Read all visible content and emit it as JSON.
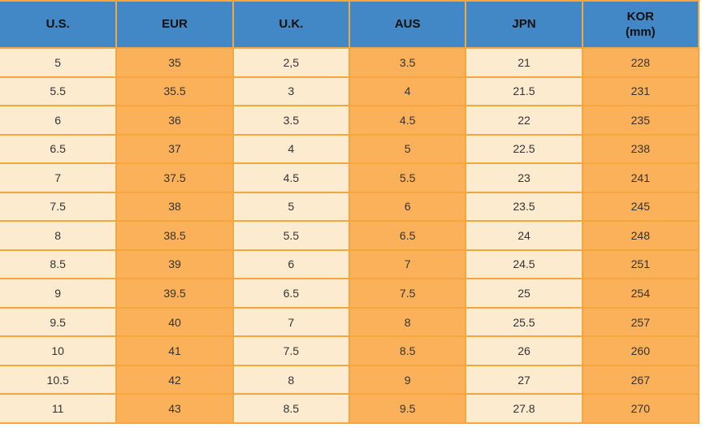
{
  "chart_data": {
    "type": "table",
    "columns": [
      {
        "label": "U.S."
      },
      {
        "label": "EUR"
      },
      {
        "label": "U.K."
      },
      {
        "label": "AUS"
      },
      {
        "label": "JPN"
      },
      {
        "label": "KOR",
        "sub": "(mm)"
      }
    ],
    "rows": [
      [
        "5",
        "35",
        "2,5",
        "3.5",
        "21",
        "228"
      ],
      [
        "5.5",
        "35.5",
        "3",
        "4",
        "21.5",
        "231"
      ],
      [
        "6",
        "36",
        "3.5",
        "4.5",
        "22",
        "235"
      ],
      [
        "6.5",
        "37",
        "4",
        "5",
        "22.5",
        "238"
      ],
      [
        "7",
        "37.5",
        "4.5",
        "5.5",
        "23",
        "241"
      ],
      [
        "7.5",
        "38",
        "5",
        "6",
        "23.5",
        "245"
      ],
      [
        "8",
        "38.5",
        "5.5",
        "6.5",
        "24",
        "248"
      ],
      [
        "8.5",
        "39",
        "6",
        "7",
        "24.5",
        "251"
      ],
      [
        "9",
        "39.5",
        "6.5",
        "7.5",
        "25",
        "254"
      ],
      [
        "9.5",
        "40",
        "7",
        "8",
        "25.5",
        "257"
      ],
      [
        "10",
        "41",
        "7.5",
        "8.5",
        "26",
        "260"
      ],
      [
        "10.5",
        "42",
        "8",
        "9",
        "27",
        "267"
      ],
      [
        "11",
        "43",
        "8.5",
        "9.5",
        "27.8",
        "270"
      ]
    ],
    "layout": {
      "header_row": true,
      "grid": true,
      "column_fill_pattern": [
        "cream",
        "orange",
        "cream",
        "orange",
        "cream",
        "orange"
      ]
    }
  },
  "colors": {
    "page_bg": "#FFFFFF",
    "header_bg": "#4288C6",
    "header_text": "#111111",
    "cell_text": "#333333",
    "cream_fill": "#FDEBD0",
    "orange_fill": "#FBB159",
    "grid_border": "#F5A63C"
  }
}
